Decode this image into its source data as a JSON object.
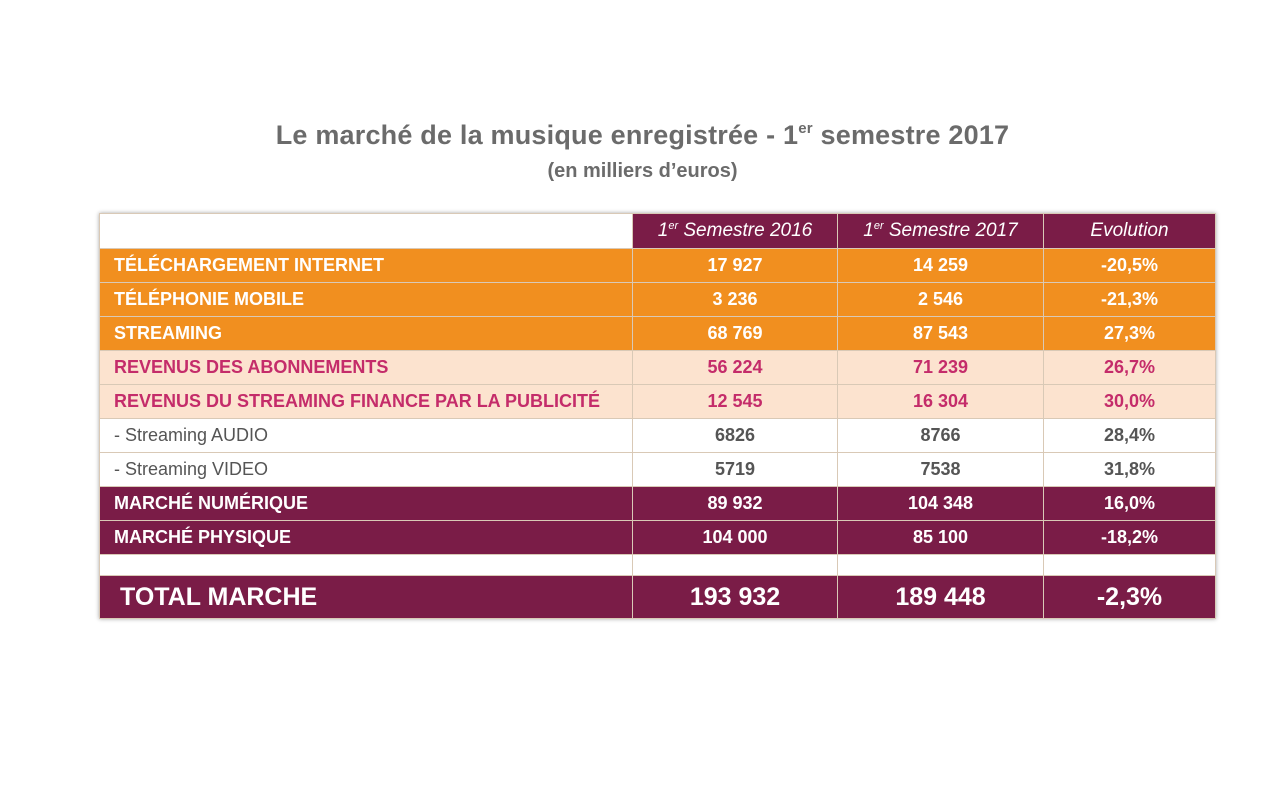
{
  "header": {
    "title_main": "Le marché de la musique enregistrée - 1",
    "title_sup": "er",
    "title_end": " semestre 2017",
    "subtitle": "(en milliers d’euros)"
  },
  "table": {
    "columns": [
      {
        "num": "1",
        "sup": "er",
        "rest": " Semestre 2016"
      },
      {
        "num": "1",
        "sup": "er",
        "rest": " Semestre 2017"
      },
      {
        "label": "Evolution"
      }
    ],
    "rows": [
      {
        "label": "TÉLÉCHARGEMENT INTERNET",
        "v2016": "17 927",
        "v2017": "14 259",
        "evolution": "-20,5%",
        "style": "orange"
      },
      {
        "label": "TÉLÉPHONIE MOBILE",
        "v2016": "3 236",
        "v2017": "2 546",
        "evolution": "-21,3%",
        "style": "orange"
      },
      {
        "label": "STREAMING",
        "v2016": "68 769",
        "v2017": "87 543",
        "evolution": "27,3%",
        "style": "orange"
      },
      {
        "label": "REVENUS DES ABONNEMENTS",
        "v2016": "56 224",
        "v2017": "71 239",
        "evolution": "26,7%",
        "style": "peach"
      },
      {
        "label": "REVENUS DU STREAMING FINANCE PAR LA PUBLICITÉ",
        "v2016": "12 545",
        "v2017": "16 304",
        "evolution": "30,0%",
        "style": "peach"
      },
      {
        "label": "- Streaming AUDIO",
        "v2016": "6826",
        "v2017": "8766",
        "evolution": "28,4%",
        "style": "sub"
      },
      {
        "label": "- Streaming  VIDEO",
        "v2016": "5719",
        "v2017": "7538",
        "evolution": "31,8%",
        "style": "sub"
      },
      {
        "label": "MARCHÉ NUMÉRIQUE",
        "v2016": "89 932",
        "v2017": "104 348",
        "evolution": "16,0%",
        "style": "maroon"
      },
      {
        "label": "MARCHÉ PHYSIQUE",
        "v2016": "104 000",
        "v2017": "85 100",
        "evolution": "-18,2%",
        "style": "maroon"
      }
    ],
    "total": {
      "label": "TOTAL MARCHE",
      "v2016": "193 932",
      "v2017": "189 448",
      "evolution": "-2,3%"
    }
  },
  "colors": {
    "maroon": "#7a1c47",
    "orange": "#f18f1f",
    "peach": "#fce3cf",
    "pink_text": "#c42c6a",
    "title_gray": "#6b6b6b"
  }
}
